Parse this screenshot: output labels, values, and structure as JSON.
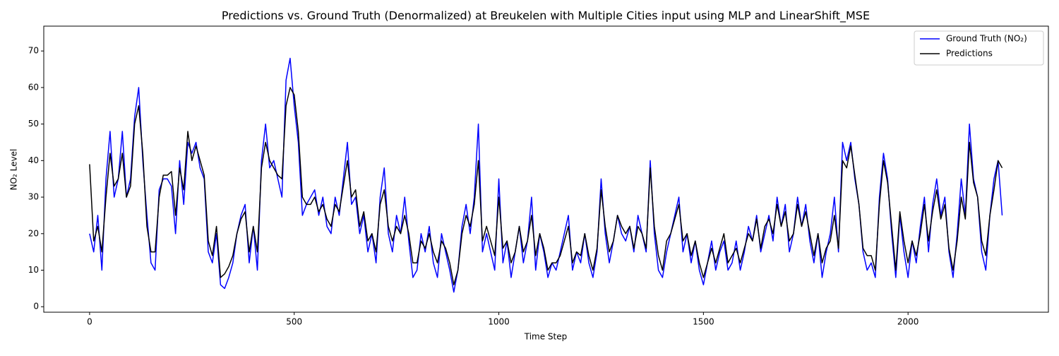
{
  "chart_data": {
    "type": "line",
    "title": "Predictions vs. Ground Truth (Denormalized) at Breukelen with Multiple Cities input using MLP and LinearShift_MSE",
    "x_label": "Time Step",
    "y_label": "NO₂ Level",
    "xlim": [
      -112,
      2343
    ],
    "ylim": [
      -1.5,
      76.8
    ],
    "xticks": [
      0,
      500,
      1000,
      1500,
      2000
    ],
    "yticks": [
      0,
      10,
      20,
      30,
      40,
      50,
      60,
      70
    ],
    "grid": false,
    "legend": "upper right",
    "x": [
      0,
      10,
      20,
      30,
      40,
      50,
      60,
      70,
      80,
      90,
      100,
      110,
      120,
      130,
      140,
      150,
      160,
      170,
      180,
      190,
      200,
      210,
      220,
      230,
      240,
      250,
      260,
      270,
      280,
      290,
      300,
      310,
      320,
      330,
      340,
      350,
      360,
      370,
      380,
      390,
      400,
      410,
      420,
      430,
      440,
      450,
      460,
      470,
      480,
      490,
      500,
      510,
      520,
      530,
      540,
      550,
      560,
      570,
      580,
      590,
      600,
      610,
      620,
      630,
      640,
      650,
      660,
      670,
      680,
      690,
      700,
      710,
      720,
      730,
      740,
      750,
      760,
      770,
      780,
      790,
      800,
      810,
      820,
      830,
      840,
      850,
      860,
      870,
      880,
      890,
      900,
      910,
      920,
      930,
      940,
      950,
      960,
      970,
      980,
      990,
      1000,
      1010,
      1020,
      1030,
      1040,
      1050,
      1060,
      1070,
      1080,
      1090,
      1100,
      1110,
      1120,
      1130,
      1140,
      1150,
      1160,
      1170,
      1180,
      1190,
      1200,
      1210,
      1220,
      1230,
      1240,
      1250,
      1260,
      1270,
      1280,
      1290,
      1300,
      1310,
      1320,
      1330,
      1340,
      1350,
      1360,
      1370,
      1380,
      1390,
      1400,
      1410,
      1420,
      1430,
      1440,
      1450,
      1460,
      1470,
      1480,
      1490,
      1500,
      1510,
      1520,
      1530,
      1540,
      1550,
      1560,
      1570,
      1580,
      1590,
      1600,
      1610,
      1620,
      1630,
      1640,
      1650,
      1660,
      1670,
      1680,
      1690,
      1700,
      1710,
      1720,
      1730,
      1740,
      1750,
      1760,
      1770,
      1780,
      1790,
      1800,
      1810,
      1820,
      1830,
      1840,
      1850,
      1860,
      1870,
      1880,
      1890,
      1900,
      1910,
      1920,
      1930,
      1940,
      1950,
      1960,
      1970,
      1980,
      1990,
      2000,
      2010,
      2020,
      2030,
      2040,
      2050,
      2060,
      2070,
      2080,
      2090,
      2100,
      2110,
      2120,
      2130,
      2140,
      2150,
      2160,
      2170,
      2180,
      2190,
      2200,
      2210,
      2220,
      2230
    ],
    "series": [
      {
        "name": "Ground Truth (NO₂)",
        "color": "#0000ff",
        "values": [
          20,
          15,
          25,
          10,
          35,
          48,
          30,
          35,
          48,
          30,
          35,
          52,
          60,
          40,
          25,
          12,
          10,
          32,
          35,
          35,
          33,
          20,
          40,
          28,
          45,
          42,
          45,
          38,
          35,
          15,
          12,
          20,
          6,
          5,
          8,
          12,
          20,
          25,
          28,
          12,
          22,
          10,
          40,
          50,
          38,
          40,
          35,
          30,
          62,
          68,
          55,
          45,
          25,
          28,
          30,
          32,
          25,
          30,
          22,
          20,
          30,
          25,
          35,
          45,
          28,
          30,
          20,
          25,
          15,
          20,
          12,
          30,
          38,
          20,
          15,
          25,
          20,
          30,
          18,
          8,
          10,
          20,
          15,
          22,
          12,
          8,
          20,
          15,
          10,
          4,
          10,
          22,
          28,
          20,
          30,
          50,
          15,
          20,
          15,
          10,
          35,
          12,
          18,
          8,
          15,
          22,
          12,
          18,
          30,
          10,
          20,
          15,
          8,
          12,
          10,
          15,
          20,
          25,
          10,
          15,
          12,
          20,
          12,
          8,
          15,
          35,
          20,
          12,
          18,
          25,
          20,
          18,
          22,
          15,
          25,
          20,
          15,
          40,
          20,
          10,
          8,
          15,
          20,
          25,
          30,
          15,
          20,
          12,
          18,
          10,
          6,
          12,
          18,
          10,
          15,
          18,
          10,
          12,
          18,
          10,
          15,
          22,
          18,
          25,
          15,
          20,
          25,
          18,
          30,
          22,
          28,
          15,
          20,
          30,
          22,
          28,
          18,
          12,
          20,
          8,
          15,
          20,
          30,
          15,
          45,
          40,
          45,
          35,
          28,
          15,
          10,
          12,
          8,
          30,
          42,
          35,
          20,
          8,
          25,
          15,
          8,
          18,
          12,
          22,
          30,
          15,
          28,
          35,
          25,
          30,
          15,
          8,
          20,
          35,
          25,
          50,
          35,
          30,
          15,
          10,
          25,
          35,
          40,
          25
        ]
      },
      {
        "name": "Predictions",
        "color": "#000000",
        "values": [
          39,
          18,
          22,
          15,
          30,
          42,
          33,
          35,
          42,
          30,
          33,
          50,
          55,
          42,
          22,
          15,
          15,
          30,
          36,
          36,
          37,
          25,
          38,
          32,
          48,
          40,
          44,
          40,
          36,
          18,
          14,
          22,
          8,
          9,
          11,
          14,
          20,
          24,
          26,
          15,
          22,
          15,
          38,
          45,
          40,
          38,
          36,
          35,
          55,
          60,
          58,
          48,
          30,
          28,
          28,
          30,
          26,
          28,
          24,
          22,
          28,
          26,
          33,
          40,
          30,
          32,
          22,
          26,
          18,
          20,
          15,
          28,
          32,
          22,
          18,
          22,
          20,
          25,
          20,
          12,
          12,
          18,
          16,
          20,
          15,
          12,
          18,
          16,
          12,
          6,
          10,
          20,
          25,
          22,
          28,
          40,
          18,
          22,
          18,
          14,
          30,
          16,
          18,
          12,
          15,
          22,
          15,
          18,
          25,
          14,
          20,
          16,
          10,
          12,
          12,
          14,
          18,
          22,
          12,
          15,
          14,
          20,
          14,
          10,
          16,
          32,
          22,
          15,
          18,
          25,
          22,
          20,
          22,
          16,
          22,
          20,
          16,
          38,
          22,
          14,
          10,
          18,
          20,
          24,
          28,
          18,
          20,
          14,
          18,
          12,
          8,
          12,
          16,
          12,
          16,
          20,
          12,
          14,
          16,
          12,
          16,
          20,
          18,
          24,
          16,
          22,
          24,
          20,
          28,
          22,
          26,
          18,
          20,
          28,
          22,
          26,
          20,
          14,
          20,
          12,
          16,
          18,
          25,
          16,
          40,
          38,
          44,
          36,
          28,
          16,
          14,
          14,
          10,
          28,
          40,
          34,
          22,
          10,
          26,
          18,
          12,
          18,
          14,
          20,
          28,
          18,
          26,
          32,
          24,
          28,
          16,
          10,
          18,
          30,
          24,
          45,
          34,
          30,
          18,
          14,
          25,
          32,
          40,
          38
        ]
      }
    ]
  }
}
